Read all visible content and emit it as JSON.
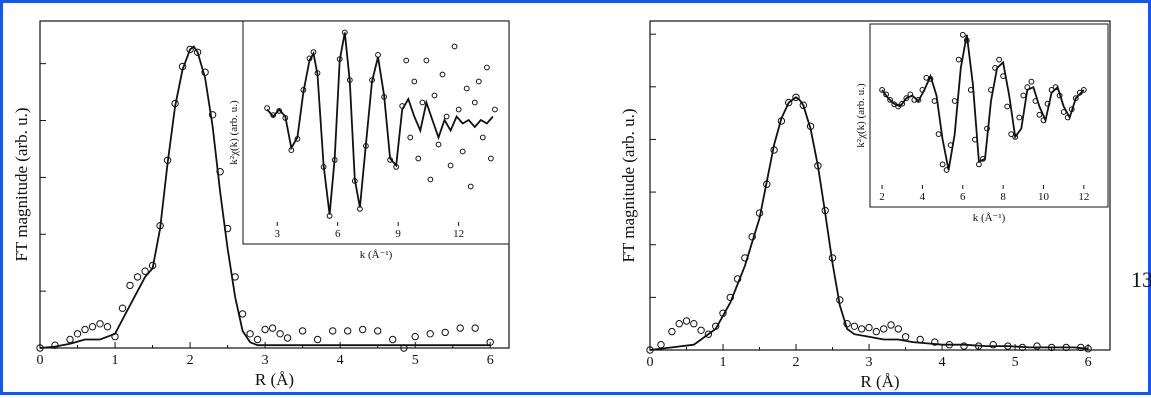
{
  "page_number": "13",
  "chart_data": [
    {
      "type": "line",
      "xlabel": "R (Å)",
      "ylabel": "FT magnitude (arb. u.)",
      "xlim": [
        0,
        6.25
      ],
      "ylim": [
        0,
        1.15
      ],
      "xticks": [
        0,
        1,
        2,
        3,
        4,
        5,
        6
      ],
      "xtick_labels": [
        "0",
        "1",
        "2",
        "3",
        "4",
        "5",
        "6"
      ],
      "yticks": [
        0.2,
        0.4,
        0.6,
        0.8,
        1.0
      ],
      "series": [
        {
          "style": "solid-line",
          "x": [
            0,
            0.2,
            0.4,
            0.6,
            0.8,
            1.0,
            1.2,
            1.4,
            1.5,
            1.6,
            1.7,
            1.8,
            1.9,
            2.0,
            2.05,
            2.1,
            2.2,
            2.3,
            2.4,
            2.5,
            2.6,
            2.7,
            2.8,
            2.9,
            3.0,
            3.2,
            3.4,
            3.6,
            3.8,
            4.0,
            4.2,
            4.4,
            4.6,
            4.8,
            5.0,
            5.2,
            5.4,
            5.6,
            5.8,
            6.0
          ],
          "y": [
            0.0,
            0.005,
            0.015,
            0.03,
            0.03,
            0.05,
            0.15,
            0.25,
            0.28,
            0.42,
            0.65,
            0.85,
            0.98,
            1.05,
            1.06,
            1.04,
            0.95,
            0.78,
            0.55,
            0.35,
            0.18,
            0.06,
            0.02,
            0.01,
            0.01,
            0.01,
            0.01,
            0.01,
            0.01,
            0.01,
            0.01,
            0.01,
            0.01,
            0.01,
            0.01,
            0.01,
            0.01,
            0.01,
            0.01,
            0.01
          ]
        },
        {
          "style": "open-circles",
          "x": [
            0,
            0.2,
            0.4,
            0.5,
            0.6,
            0.7,
            0.8,
            0.9,
            1.0,
            1.1,
            1.2,
            1.3,
            1.4,
            1.5,
            1.6,
            1.7,
            1.8,
            1.9,
            2.0,
            2.1,
            2.2,
            2.3,
            2.4,
            2.5,
            2.6,
            2.7,
            2.8,
            2.9,
            3.0,
            3.1,
            3.2,
            3.3,
            3.5,
            3.7,
            3.9,
            4.1,
            4.3,
            4.5,
            4.7,
            4.85,
            5.0,
            5.2,
            5.4,
            5.6,
            5.8,
            6.0
          ],
          "y": [
            0.0,
            0.01,
            0.03,
            0.05,
            0.065,
            0.075,
            0.085,
            0.075,
            0.04,
            0.14,
            0.22,
            0.25,
            0.27,
            0.29,
            0.43,
            0.66,
            0.86,
            0.99,
            1.05,
            1.04,
            0.97,
            0.82,
            0.62,
            0.42,
            0.25,
            0.12,
            0.05,
            0.03,
            0.065,
            0.07,
            0.05,
            0.035,
            0.06,
            0.03,
            0.06,
            0.06,
            0.065,
            0.06,
            0.03,
            0.0,
            0.04,
            0.05,
            0.055,
            0.07,
            0.07,
            0.02
          ]
        }
      ],
      "inset": {
        "type": "line",
        "xlabel": "k (Å⁻¹)",
        "ylabel": "k²χ(k) (arb. u.)",
        "xlim": [
          1.6,
          14.2
        ],
        "ylim": [
          -1.35,
          1.35
        ],
        "xticks": [
          3,
          6,
          9,
          12
        ],
        "xtick_labels": [
          "3",
          "6",
          "9",
          "12"
        ],
        "series": [
          {
            "style": "solid-line",
            "x": [
              2.5,
              2.8,
              3.1,
              3.4,
              3.7,
              4.0,
              4.3,
              4.6,
              4.8,
              5.0,
              5.3,
              5.6,
              5.85,
              6.1,
              6.35,
              6.6,
              6.85,
              7.1,
              7.4,
              7.7,
              8.0,
              8.3,
              8.6,
              8.9,
              9.2,
              9.5,
              9.8,
              10.1,
              10.4,
              10.7,
              11.0,
              11.3,
              11.6,
              11.9,
              12.2,
              12.5,
              12.8,
              13.1,
              13.4,
              13.7
            ],
            "y": [
              0.2,
              0.1,
              0.2,
              0.1,
              -0.35,
              -0.2,
              0.45,
              0.9,
              1.0,
              0.7,
              -0.6,
              -1.3,
              -0.5,
              0.9,
              1.3,
              0.6,
              -0.8,
              -1.2,
              -0.3,
              0.6,
              0.95,
              0.4,
              -0.5,
              -0.6,
              0.2,
              0.35,
              0.1,
              -0.1,
              0.3,
              0.05,
              -0.2,
              0.05,
              -0.1,
              0.1,
              0.0,
              0.05,
              -0.05,
              0.05,
              0.0,
              0.1
            ]
          },
          {
            "style": "open-circles",
            "x": [
              2.5,
              2.8,
              3.1,
              3.4,
              3.7,
              4.0,
              4.3,
              4.6,
              4.8,
              5.0,
              5.3,
              5.6,
              5.85,
              6.1,
              6.35,
              6.6,
              6.85,
              7.1,
              7.4,
              7.7,
              8.0,
              8.3,
              8.6,
              8.9,
              9.2,
              9.4,
              9.6,
              9.8,
              10.0,
              10.2,
              10.4,
              10.6,
              10.8,
              11.0,
              11.2,
              11.4,
              11.6,
              11.8,
              12.0,
              12.2,
              12.4,
              12.6,
              12.8,
              13.0,
              13.2,
              13.4,
              13.6,
              13.8
            ],
            "y": [
              0.22,
              0.12,
              0.18,
              0.08,
              -0.38,
              -0.22,
              0.48,
              0.93,
              1.02,
              0.72,
              -0.62,
              -1.32,
              -0.52,
              0.92,
              1.3,
              0.62,
              -0.82,
              -1.22,
              -0.32,
              0.62,
              0.98,
              0.38,
              -0.52,
              -0.62,
              0.25,
              0.9,
              -0.2,
              0.6,
              -0.5,
              0.3,
              0.9,
              -0.8,
              0.4,
              -0.3,
              0.7,
              0.1,
              -0.6,
              1.1,
              0.2,
              -0.4,
              0.5,
              -0.9,
              0.3,
              0.6,
              -0.2,
              0.8,
              -0.5,
              0.2
            ]
          }
        ]
      }
    },
    {
      "type": "line",
      "xlabel": "R (Å)",
      "ylabel": "FT magnitude (arb. u.)",
      "xlim": [
        0,
        6.3
      ],
      "ylim": [
        0,
        1.25
      ],
      "xticks": [
        0,
        1,
        2,
        3,
        4,
        5,
        6
      ],
      "xtick_labels": [
        "0",
        "1",
        "2",
        "3",
        "4",
        "5",
        "6"
      ],
      "yticks": [
        0.2,
        0.4,
        0.6,
        0.8,
        1.0,
        1.2
      ],
      "series": [
        {
          "style": "solid-line",
          "x": [
            0,
            0.3,
            0.6,
            0.9,
            1.1,
            1.3,
            1.5,
            1.6,
            1.7,
            1.8,
            1.9,
            2.0,
            2.05,
            2.1,
            2.2,
            2.3,
            2.4,
            2.5,
            2.6,
            2.7,
            2.8,
            3.0,
            3.2,
            3.4,
            3.6,
            3.8,
            4.0,
            4.3,
            4.6,
            4.9,
            5.2,
            5.5,
            5.8,
            6.0
          ],
          "y": [
            0.0,
            0.01,
            0.02,
            0.08,
            0.18,
            0.32,
            0.5,
            0.64,
            0.78,
            0.88,
            0.94,
            0.96,
            0.95,
            0.93,
            0.84,
            0.7,
            0.52,
            0.33,
            0.17,
            0.08,
            0.06,
            0.05,
            0.04,
            0.04,
            0.03,
            0.025,
            0.02,
            0.02,
            0.015,
            0.015,
            0.01,
            0.01,
            0.01,
            0.005
          ]
        },
        {
          "style": "open-circles",
          "x": [
            0,
            0.15,
            0.3,
            0.4,
            0.5,
            0.6,
            0.7,
            0.8,
            0.9,
            1.0,
            1.1,
            1.2,
            1.3,
            1.4,
            1.5,
            1.6,
            1.7,
            1.8,
            1.9,
            2.0,
            2.1,
            2.2,
            2.3,
            2.4,
            2.5,
            2.6,
            2.7,
            2.8,
            2.9,
            3.0,
            3.1,
            3.2,
            3.3,
            3.4,
            3.5,
            3.7,
            3.9,
            4.1,
            4.3,
            4.5,
            4.7,
            4.9,
            5.1,
            5.3,
            5.5,
            5.7,
            5.9,
            6.0
          ],
          "y": [
            0.0,
            0.02,
            0.07,
            0.1,
            0.11,
            0.1,
            0.075,
            0.06,
            0.09,
            0.14,
            0.2,
            0.27,
            0.35,
            0.43,
            0.52,
            0.63,
            0.76,
            0.87,
            0.94,
            0.96,
            0.93,
            0.85,
            0.7,
            0.53,
            0.35,
            0.19,
            0.1,
            0.09,
            0.08,
            0.085,
            0.07,
            0.08,
            0.095,
            0.08,
            0.05,
            0.04,
            0.03,
            0.02,
            0.015,
            0.015,
            0.02,
            0.015,
            0.01,
            0.015,
            0.01,
            0.01,
            0.01,
            0.005
          ]
        }
      ],
      "inset": {
        "type": "line",
        "xlabel": "k (Å⁻¹)",
        "ylabel": "k²χ(k) (arb. u.)",
        "xlim": [
          1.7,
          12.9
        ],
        "ylim": [
          -1.35,
          1.35
        ],
        "xticks": [
          2,
          4,
          6,
          8,
          10,
          12
        ],
        "xtick_labels": [
          "2",
          "4",
          "6",
          "8",
          "10",
          "12"
        ],
        "series": [
          {
            "style": "solid-line",
            "x": [
              2.0,
              2.3,
              2.6,
              2.9,
              3.2,
              3.5,
              3.8,
              4.1,
              4.4,
              4.7,
              5.0,
              5.3,
              5.6,
              5.9,
              6.2,
              6.5,
              6.8,
              7.1,
              7.4,
              7.7,
              8.0,
              8.3,
              8.6,
              8.9,
              9.2,
              9.5,
              9.8,
              10.1,
              10.4,
              10.7,
              11.0,
              11.3,
              11.6,
              12.0
            ],
            "y": [
              0.3,
              0.15,
              0.05,
              0.0,
              0.15,
              0.2,
              0.1,
              0.3,
              0.55,
              0.2,
              -0.6,
              -1.15,
              -0.5,
              0.7,
              1.3,
              0.4,
              -1.0,
              -0.95,
              0.1,
              0.7,
              0.8,
              0.2,
              -0.55,
              -0.4,
              0.3,
              0.35,
              0.0,
              -0.25,
              0.25,
              0.35,
              0.0,
              -0.2,
              0.15,
              0.3
            ]
          },
          {
            "style": "open-circles",
            "x": [
              2.0,
              2.2,
              2.4,
              2.6,
              2.8,
              3.0,
              3.2,
              3.4,
              3.6,
              3.8,
              4.0,
              4.2,
              4.4,
              4.6,
              4.8,
              5.0,
              5.2,
              5.4,
              5.6,
              5.8,
              6.0,
              6.2,
              6.4,
              6.6,
              6.8,
              7.0,
              7.2,
              7.4,
              7.6,
              7.8,
              8.0,
              8.2,
              8.4,
              8.6,
              8.8,
              9.0,
              9.2,
              9.4,
              9.6,
              9.8,
              10.0,
              10.2,
              10.4,
              10.6,
              10.8,
              11.0,
              11.2,
              11.4,
              11.6,
              11.8,
              12.0
            ],
            "y": [
              0.3,
              0.22,
              0.12,
              0.04,
              0.0,
              0.05,
              0.15,
              0.22,
              0.12,
              0.12,
              0.3,
              0.52,
              0.5,
              0.1,
              -0.5,
              -1.05,
              -1.15,
              -0.7,
              0.1,
              0.85,
              1.3,
              1.2,
              0.3,
              -0.6,
              -1.05,
              -0.95,
              -0.4,
              0.3,
              0.7,
              0.85,
              0.55,
              0.0,
              -0.5,
              -0.55,
              -0.2,
              0.2,
              0.35,
              0.45,
              0.1,
              -0.15,
              -0.25,
              0.05,
              0.3,
              0.35,
              0.2,
              -0.1,
              -0.2,
              -0.05,
              0.15,
              0.25,
              0.3
            ]
          }
        ]
      }
    }
  ]
}
